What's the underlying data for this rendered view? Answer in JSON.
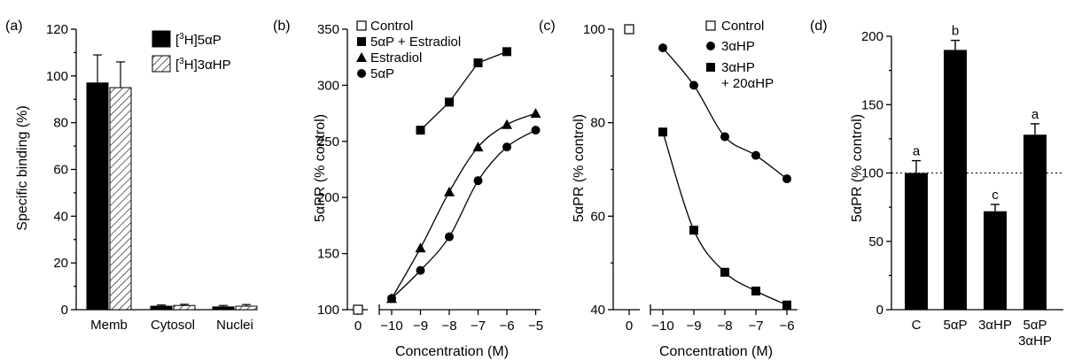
{
  "chart_data": [
    {
      "panel": "(a)",
      "type": "bar",
      "ylabel": "Specific binding (%)",
      "ylim": [
        0,
        120
      ],
      "yticks": [
        "0",
        "20",
        "40",
        "60",
        "80",
        "100",
        "120"
      ],
      "categories": [
        "Memb",
        "Cytosol",
        "Nuclei"
      ],
      "legend_placement": "top-right",
      "series": [
        {
          "name": "[3H]5αP",
          "legend_prefix": "[",
          "legend_sup": "3",
          "legend_rest": "H]5αP",
          "fill": "#000000",
          "values": [
            97,
            1.5,
            1.2
          ],
          "errors": [
            12,
            0.5,
            0.6
          ]
        },
        {
          "name": "[3H]3αHP",
          "legend_prefix": "[",
          "legend_sup": "3",
          "legend_rest": "H]3αHP",
          "fill": "hatched",
          "values": [
            95,
            1.8,
            1.5
          ],
          "errors": [
            11,
            0.5,
            0.7
          ]
        }
      ]
    },
    {
      "panel": "(b)",
      "type": "line",
      "xlabel": "Concentration (M)",
      "ylabel": "5αPR (% control)",
      "ylim": [
        100,
        350
      ],
      "yticks": [
        "100",
        "150",
        "200",
        "250",
        "300",
        "350"
      ],
      "xticks": [
        "0",
        "−10",
        "−9",
        "−8",
        "−7",
        "−6",
        "−5"
      ],
      "legend_placement": "top-left",
      "series": [
        {
          "name": "Control",
          "marker": "open-square",
          "x": [
            0
          ],
          "y": [
            100
          ]
        },
        {
          "name": "5αP + Estradiol",
          "marker": "square",
          "x": [
            -9,
            -8,
            -7,
            -6
          ],
          "y": [
            260,
            285,
            320,
            330
          ]
        },
        {
          "name": "Estradiol",
          "marker": "triangle",
          "x": [
            -10,
            -9,
            -8,
            -7,
            -6,
            -5
          ],
          "y": [
            110,
            155,
            205,
            245,
            265,
            275
          ]
        },
        {
          "name": "5αP",
          "marker": "circle",
          "x": [
            -10,
            -9,
            -8,
            -7,
            -6,
            -5
          ],
          "y": [
            110,
            135,
            165,
            215,
            245,
            260
          ]
        }
      ]
    },
    {
      "panel": "(c)",
      "type": "line",
      "xlabel": "Concentration (M)",
      "ylabel": "5αPR (% control)",
      "ylim": [
        40,
        100
      ],
      "yticks": [
        "40",
        "60",
        "80",
        "100"
      ],
      "xticks": [
        "0",
        "−10",
        "−9",
        "−8",
        "−7",
        "−6"
      ],
      "legend_placement": "top-right",
      "series": [
        {
          "name": "Control",
          "marker": "open-square",
          "x": [
            0
          ],
          "y": [
            100
          ]
        },
        {
          "name": "3αHP",
          "marker": "circle",
          "x": [
            -10,
            -9,
            -8,
            -7,
            -6
          ],
          "y": [
            96,
            88,
            77,
            73,
            68
          ]
        },
        {
          "name": "3αHP + 20αHP",
          "line1": "3αHP",
          "line2": "+ 20αHP",
          "marker": "square",
          "x": [
            -10,
            -9,
            -8,
            -7,
            -6
          ],
          "y": [
            78,
            57,
            48,
            44,
            41
          ]
        }
      ]
    },
    {
      "panel": "(d)",
      "type": "bar",
      "ylabel": "5αPR (% control)",
      "ylim": [
        0,
        200
      ],
      "yticks": [
        "0",
        "50",
        "100",
        "150",
        "200"
      ],
      "reference_line": 100,
      "categories": [
        "C",
        "5αP",
        "3αHP",
        "5αP\n3αHP"
      ],
      "category_lines": [
        [
          "C"
        ],
        [
          "5αP"
        ],
        [
          "3αHP"
        ],
        [
          "5αP",
          "3αHP"
        ]
      ],
      "values": [
        100,
        190,
        72,
        128
      ],
      "errors": [
        9,
        7,
        5,
        8
      ],
      "significance_letters": [
        "a",
        "b",
        "c",
        "a"
      ]
    }
  ]
}
